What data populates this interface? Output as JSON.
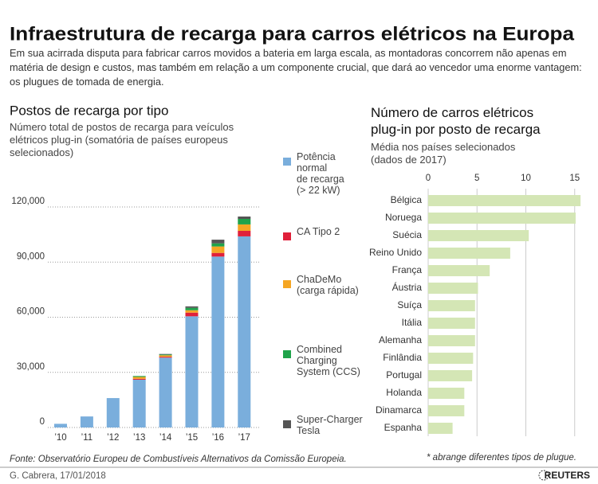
{
  "header": {
    "title": "Infraestrutura de recarga para carros elétricos na Europa",
    "subtitle": "Em sua acirrada disputa para fabricar carros movidos a bateria em larga escala, as montadoras concorrem não apenas em matéria de design e custos, mas também em relação a um componente crucial, que dará ao vencedor uma enorme vantagem: os plugues de tomada de energia."
  },
  "chart_data": [
    {
      "type": "stacked-bar",
      "title": "Postos de recarga por tipo",
      "subtitle": "Número total de postos de recarga para veículos elétricos plug-in (somatória de países europeus selecionados)",
      "categories": [
        "’10",
        "’11",
        "’12",
        "’13",
        "’14",
        "’15",
        "’16",
        "’17"
      ],
      "series": [
        {
          "name": "Potência\nnormal\nde recarga\n(> 22 kW)",
          "color": "#7aaedc",
          "values": [
            2000,
            6000,
            16000,
            26000,
            38000,
            60500,
            93000,
            104000
          ]
        },
        {
          "name": "CA Tipo 2",
          "color": "#e0203a",
          "values": [
            0,
            0,
            0,
            500,
            500,
            2000,
            2000,
            3000
          ]
        },
        {
          "name": "ChaDeMo\n(carga rápida)",
          "color": "#f5a623",
          "values": [
            0,
            0,
            0,
            1000,
            800,
            1300,
            3500,
            3500
          ]
        },
        {
          "name": "Combined\nCharging\nSystem (CCS)",
          "color": "#1fa34a",
          "values": [
            0,
            0,
            0,
            500,
            400,
            1300,
            1700,
            3000
          ]
        },
        {
          "name": "Super-Charger\nTesla",
          "color": "#555555",
          "values": [
            0,
            0,
            0,
            0,
            300,
            800,
            2000,
            1300
          ]
        }
      ],
      "ylim": [
        0,
        120000
      ],
      "yticks": [
        0,
        {
          "value": 30000,
          "label": "30,000"
        },
        {
          "value": 60000,
          "label": "60,000"
        },
        {
          "value": 90000,
          "label": "90,000"
        },
        {
          "value": 120000,
          "label": "120,000"
        }
      ],
      "grid": true
    },
    {
      "type": "hbar",
      "title": "Número de carros elétricos\nplug-in por posto de recarga",
      "subtitle": "Média nos países selecionados\n(dados de 2017)",
      "categories": [
        "Bélgica",
        "Noruega",
        "Suécia",
        "Reino Unido",
        "França",
        "Áustria",
        "Suíça",
        "Itália",
        "Alemanha",
        "Finlândia",
        "Portugal",
        "Holanda",
        "Dinamarca",
        "Espanha"
      ],
      "values": [
        15.6,
        15.1,
        10.3,
        8.4,
        6.3,
        5.1,
        4.8,
        4.8,
        4.8,
        4.6,
        4.5,
        3.7,
        3.7,
        2.5
      ],
      "color": "#d4e6b5",
      "xlim": [
        0,
        16
      ],
      "xticks": [
        0,
        5,
        10,
        15
      ],
      "grid": true
    }
  ],
  "footer": {
    "source": "Fonte: Observatório Europeu de Combustíveis Alternativos da Comissão Europeia.",
    "note": "* abrange diferentes tipos de plugue.",
    "credit": "G. Cabrera, 17/01/2018",
    "logo": "REUTERS"
  }
}
